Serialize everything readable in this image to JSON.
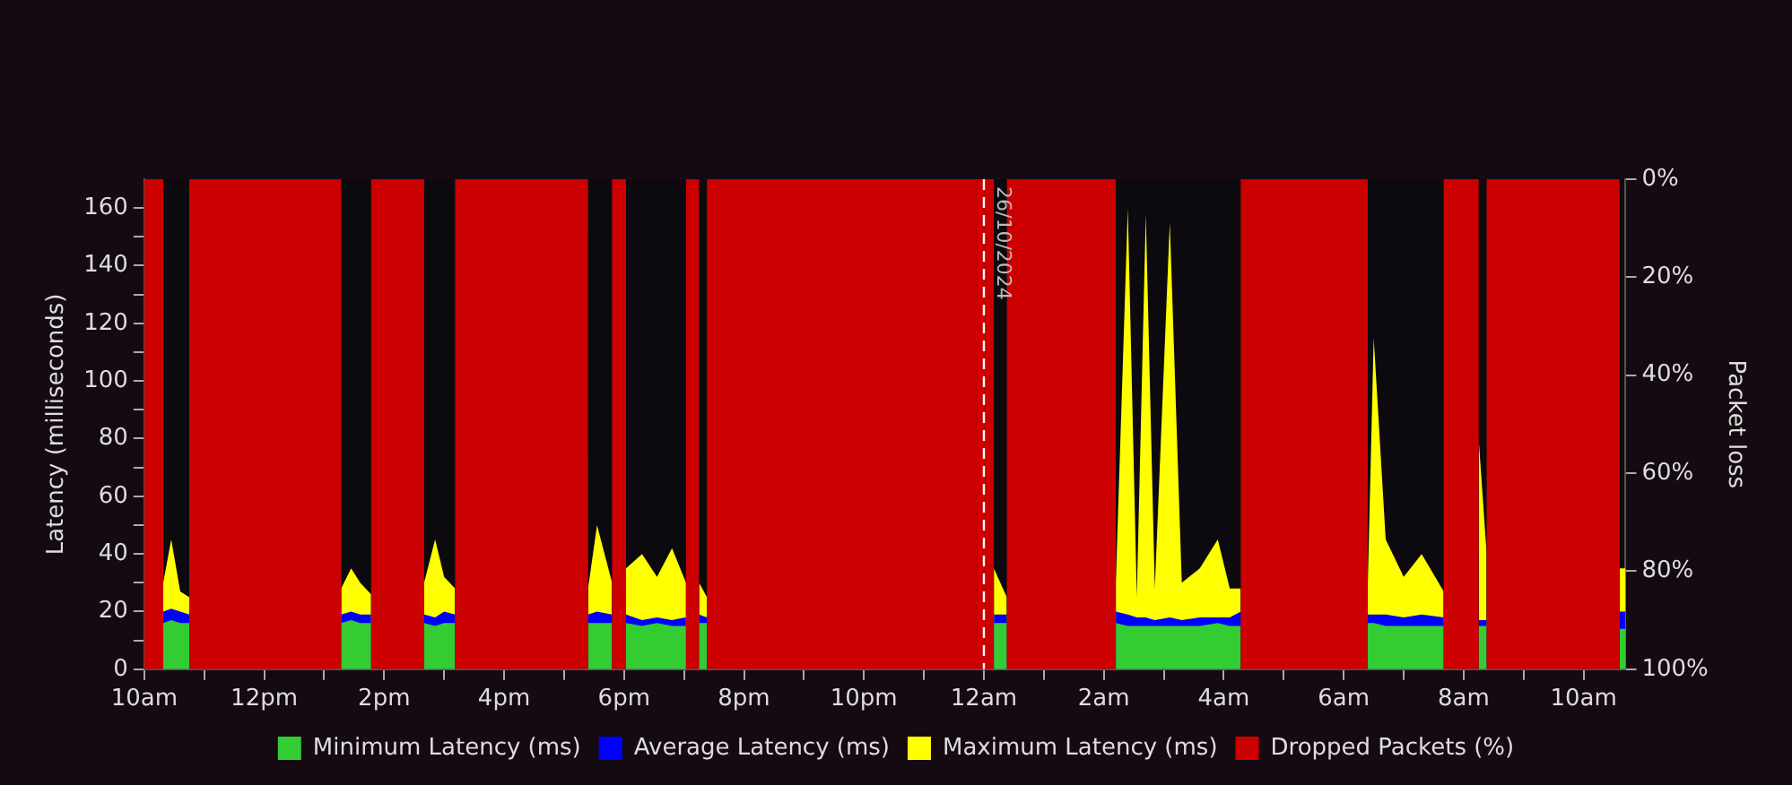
{
  "chart_data": {
    "type": "area",
    "ylabel": "Latency (milliseconds)",
    "y2label": "Packet loss",
    "x": [
      "2024-10-25T10:00",
      "2024-10-25T10:19",
      "2024-10-25T10:19",
      "2024-10-25T10:27",
      "2024-10-25T10:36",
      "2024-10-25T10:45",
      "2024-10-25T10:45",
      "2024-10-25T13:17",
      "2024-10-25T13:17",
      "2024-10-25T13:27",
      "2024-10-25T13:36",
      "2024-10-25T13:47",
      "2024-10-25T13:47",
      "2024-10-25T14:40",
      "2024-10-25T14:40",
      "2024-10-25T14:51",
      "2024-10-25T15:00",
      "2024-10-25T15:11",
      "2024-10-25T15:11",
      "2024-10-25T17:24",
      "2024-10-25T17:24",
      "2024-10-25T17:33",
      "2024-10-25T17:48",
      "2024-10-25T17:48",
      "2024-10-25T18:02",
      "2024-10-25T18:02",
      "2024-10-25T18:18",
      "2024-10-25T18:33",
      "2024-10-25T18:48",
      "2024-10-25T19:02",
      "2024-10-25T19:02",
      "2024-10-25T19:15",
      "2024-10-25T19:15",
      "2024-10-25T19:23",
      "2024-10-25T19:23",
      "2024-10-26T00:10",
      "2024-10-26T00:10",
      "2024-10-26T00:23",
      "2024-10-26T00:23",
      "2024-10-26T02:12",
      "2024-10-26T02:12",
      "2024-10-26T02:24",
      "2024-10-26T02:33",
      "2024-10-26T02:42",
      "2024-10-26T02:51",
      "2024-10-26T03:06",
      "2024-10-26T03:18",
      "2024-10-26T03:36",
      "2024-10-26T03:54",
      "2024-10-26T04:06",
      "2024-10-26T04:17",
      "2024-10-26T04:17",
      "2024-10-26T06:24",
      "2024-10-26T06:24",
      "2024-10-26T06:30",
      "2024-10-26T06:42",
      "2024-10-26T07:00",
      "2024-10-26T07:18",
      "2024-10-26T07:40",
      "2024-10-26T07:40",
      "2024-10-26T08:15",
      "2024-10-26T08:15",
      "2024-10-26T08:23",
      "2024-10-26T08:23",
      "2024-10-26T10:36",
      "2024-10-26T10:36",
      "2024-10-26T10:42"
    ],
    "series": [
      {
        "name": "Minimum Latency (ms)",
        "color": "#33cc33",
        "values": [
          null,
          null,
          16,
          17,
          16,
          16,
          null,
          null,
          16,
          17,
          16,
          16,
          null,
          null,
          16,
          15,
          16,
          16,
          null,
          null,
          16,
          16,
          16,
          null,
          null,
          16,
          15,
          16,
          15,
          15,
          null,
          null,
          16,
          16,
          null,
          null,
          16,
          16,
          null,
          null,
          16,
          15,
          15,
          15,
          15,
          15,
          15,
          15,
          16,
          15,
          15,
          null,
          null,
          16,
          16,
          15,
          15,
          15,
          15,
          null,
          null,
          15,
          15,
          null,
          null,
          14,
          14
        ]
      },
      {
        "name": "Average Latency (ms)",
        "color": "#0000ff",
        "values": [
          null,
          null,
          20,
          21,
          20,
          19,
          null,
          null,
          19,
          20,
          19,
          19,
          null,
          null,
          19,
          18,
          20,
          19,
          null,
          null,
          19,
          20,
          19,
          null,
          null,
          19,
          17,
          18,
          17,
          18,
          null,
          null,
          19,
          18,
          null,
          null,
          19,
          19,
          null,
          null,
          20,
          19,
          18,
          18,
          17,
          18,
          17,
          18,
          18,
          18,
          20,
          null,
          null,
          19,
          19,
          19,
          18,
          19,
          18,
          null,
          null,
          17,
          17,
          null,
          null,
          20,
          20
        ]
      },
      {
        "name": "Maximum Latency (ms)",
        "color": "#ffff00",
        "values": [
          null,
          null,
          30,
          45,
          27,
          25,
          null,
          null,
          28,
          35,
          30,
          26,
          null,
          null,
          30,
          45,
          32,
          28,
          null,
          null,
          28,
          50,
          30,
          null,
          null,
          35,
          40,
          32,
          42,
          30,
          null,
          null,
          30,
          25,
          null,
          null,
          35,
          25,
          null,
          null,
          30,
          160,
          25,
          158,
          28,
          155,
          30,
          35,
          45,
          28,
          28,
          null,
          null,
          28,
          115,
          45,
          32,
          40,
          27,
          null,
          null,
          80,
          40,
          null,
          null,
          35,
          35
        ]
      },
      {
        "name": "Dropped Packets (%)",
        "axis": "y2",
        "color": "#cc0000",
        "values": [
          100,
          100,
          0,
          0,
          0,
          0,
          100,
          100,
          0,
          0,
          0,
          0,
          100,
          100,
          0,
          0,
          0,
          0,
          100,
          100,
          0,
          0,
          0,
          100,
          100,
          0,
          0,
          0,
          0,
          0,
          100,
          100,
          0,
          0,
          100,
          100,
          0,
          0,
          100,
          100,
          0,
          0,
          0,
          0,
          0,
          0,
          0,
          0,
          0,
          0,
          0,
          100,
          100,
          0,
          0,
          0,
          0,
          0,
          0,
          100,
          100,
          0,
          0,
          100,
          100,
          0,
          0
        ]
      }
    ],
    "xlim": [
      "2024-10-25T10:00",
      "2024-10-26T10:42"
    ],
    "xticks": [
      {
        "value": "2024-10-25T10:00",
        "label": "10am"
      },
      {
        "value": "2024-10-25T11:00",
        "label": null
      },
      {
        "value": "2024-10-25T12:00",
        "label": "12pm"
      },
      {
        "value": "2024-10-25T13:00",
        "label": null
      },
      {
        "value": "2024-10-25T14:00",
        "label": "2pm"
      },
      {
        "value": "2024-10-25T15:00",
        "label": null
      },
      {
        "value": "2024-10-25T16:00",
        "label": "4pm"
      },
      {
        "value": "2024-10-25T17:00",
        "label": null
      },
      {
        "value": "2024-10-25T18:00",
        "label": "6pm"
      },
      {
        "value": "2024-10-25T19:00",
        "label": null
      },
      {
        "value": "2024-10-25T20:00",
        "label": "8pm"
      },
      {
        "value": "2024-10-25T21:00",
        "label": null
      },
      {
        "value": "2024-10-25T22:00",
        "label": "10pm"
      },
      {
        "value": "2024-10-25T23:00",
        "label": null
      },
      {
        "value": "2024-10-26T00:00",
        "label": "12am"
      },
      {
        "value": "2024-10-26T01:00",
        "label": null
      },
      {
        "value": "2024-10-26T02:00",
        "label": "2am"
      },
      {
        "value": "2024-10-26T03:00",
        "label": null
      },
      {
        "value": "2024-10-26T04:00",
        "label": "4am"
      },
      {
        "value": "2024-10-26T05:00",
        "label": null
      },
      {
        "value": "2024-10-26T06:00",
        "label": "6am"
      },
      {
        "value": "2024-10-26T07:00",
        "label": null
      },
      {
        "value": "2024-10-26T08:00",
        "label": "8am"
      },
      {
        "value": "2024-10-26T09:00",
        "label": null
      },
      {
        "value": "2024-10-26T10:00",
        "label": "10am"
      }
    ],
    "ylim": [
      0,
      170
    ],
    "yticks": [
      0,
      {
        "value": 10,
        "label": null
      },
      20,
      {
        "value": 30,
        "label": null
      },
      40,
      {
        "value": 50,
        "label": null
      },
      60,
      {
        "value": 70,
        "label": null
      },
      80,
      {
        "value": 90,
        "label": null
      },
      100,
      {
        "value": 110,
        "label": null
      },
      120,
      {
        "value": 130,
        "label": null
      },
      140,
      {
        "value": 150,
        "label": null
      },
      160
    ],
    "y2lim": [
      100,
      0
    ],
    "y2ticks": [
      {
        "value": 0,
        "label": "0%"
      },
      {
        "value": 20,
        "label": "20%"
      },
      {
        "value": 40,
        "label": "40%"
      },
      {
        "value": 60,
        "label": "60%"
      },
      {
        "value": 80,
        "label": "80%"
      },
      {
        "value": 100,
        "label": "100%"
      }
    ],
    "ref_lines": [
      {
        "axis": "x",
        "value": "2024-10-26T00:00",
        "label": "26/10/2024",
        "color": "#ffffff",
        "line_style": "dashed"
      }
    ],
    "legend": "bottom",
    "grid": false
  }
}
